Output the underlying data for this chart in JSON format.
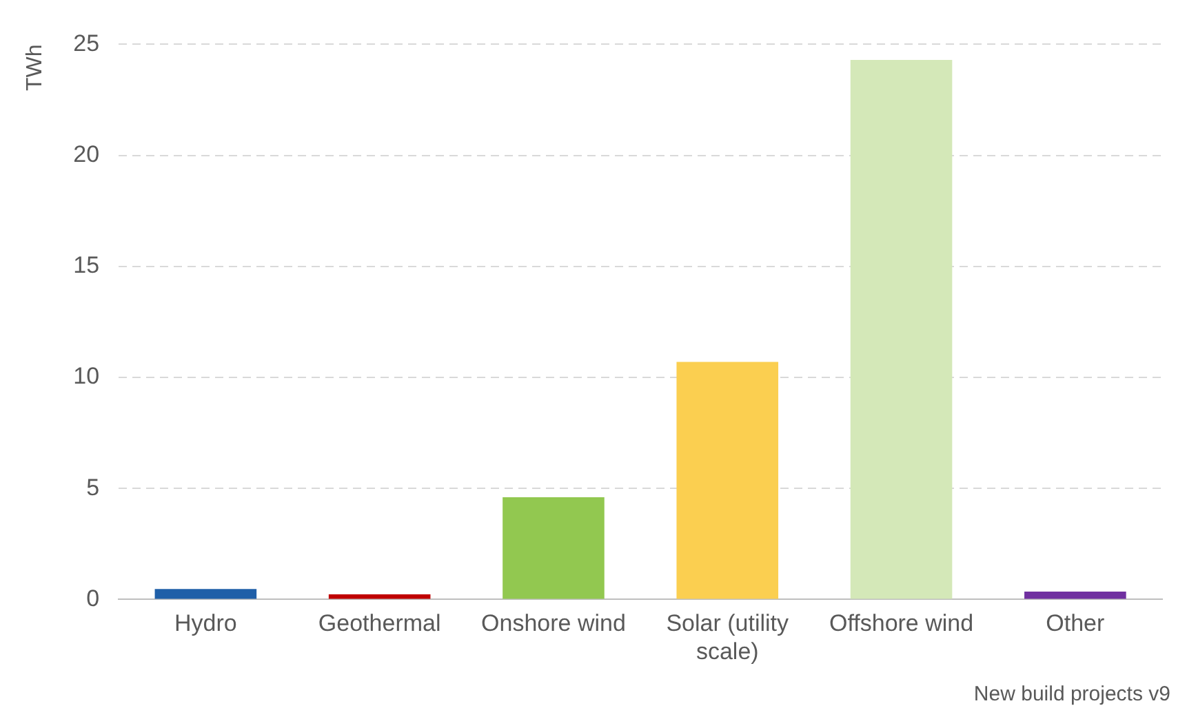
{
  "chart_data": {
    "type": "bar",
    "ylabel": "TWh",
    "categories": [
      "Hydro",
      "Geothermal",
      "Onshore wind",
      "Solar (utility scale)",
      "Offshore wind",
      "Other"
    ],
    "values": [
      0.47,
      0.23,
      4.6,
      10.7,
      24.3,
      0.35
    ],
    "colors": [
      "#1f5fa8",
      "#c00000",
      "#92c850",
      "#fbcf50",
      "#d4e8b8",
      "#7030a0"
    ],
    "ylim": [
      0,
      25
    ],
    "yticks": [
      0,
      5,
      10,
      15,
      20,
      25
    ],
    "grid": "y",
    "legend": false,
    "annotations": [
      "New build projects v9"
    ]
  }
}
